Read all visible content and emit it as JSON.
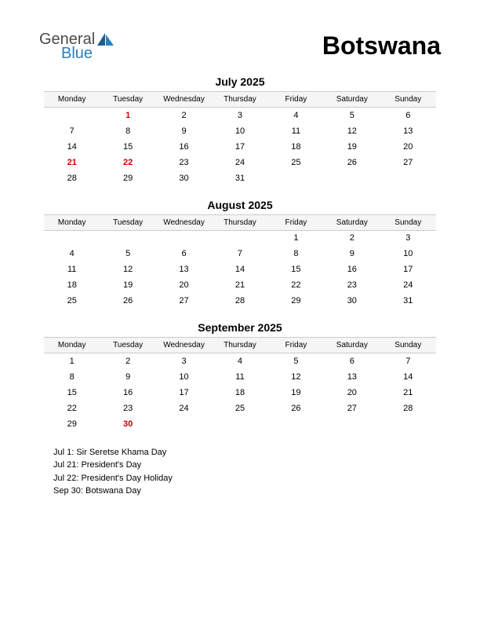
{
  "logo": {
    "text1": "General",
    "text2": "Blue",
    "color_general": "#4a4a4a",
    "color_blue": "#2b7fbf",
    "triangle_color": "#1e5f8f"
  },
  "country": "Botswana",
  "day_headers": [
    "Monday",
    "Tuesday",
    "Wednesday",
    "Thursday",
    "Friday",
    "Saturday",
    "Sunday"
  ],
  "months": [
    {
      "title": "July 2025",
      "weeks": [
        [
          "",
          "1",
          "2",
          "3",
          "4",
          "5",
          "6"
        ],
        [
          "7",
          "8",
          "9",
          "10",
          "11",
          "12",
          "13"
        ],
        [
          "14",
          "15",
          "16",
          "17",
          "18",
          "19",
          "20"
        ],
        [
          "21",
          "22",
          "23",
          "24",
          "25",
          "26",
          "27"
        ],
        [
          "28",
          "29",
          "30",
          "31",
          "",
          "",
          ""
        ]
      ],
      "holidays": [
        "1",
        "21",
        "22"
      ]
    },
    {
      "title": "August 2025",
      "weeks": [
        [
          "",
          "",
          "",
          "",
          "1",
          "2",
          "3"
        ],
        [
          "4",
          "5",
          "6",
          "7",
          "8",
          "9",
          "10"
        ],
        [
          "11",
          "12",
          "13",
          "14",
          "15",
          "16",
          "17"
        ],
        [
          "18",
          "19",
          "20",
          "21",
          "22",
          "23",
          "24"
        ],
        [
          "25",
          "26",
          "27",
          "28",
          "29",
          "30",
          "31"
        ]
      ],
      "holidays": []
    },
    {
      "title": "September 2025",
      "weeks": [
        [
          "1",
          "2",
          "3",
          "4",
          "5",
          "6",
          "7"
        ],
        [
          "8",
          "9",
          "10",
          "11",
          "12",
          "13",
          "14"
        ],
        [
          "15",
          "16",
          "17",
          "18",
          "19",
          "20",
          "21"
        ],
        [
          "22",
          "23",
          "24",
          "25",
          "26",
          "27",
          "28"
        ],
        [
          "29",
          "30",
          "",
          "",
          "",
          "",
          ""
        ]
      ],
      "holidays": [
        "30"
      ]
    }
  ],
  "holiday_list": [
    "Jul 1: Sir Seretse Khama Day",
    "Jul 21: President's Day",
    "Jul 22: President's Day Holiday",
    "Sep 30: Botswana Day"
  ],
  "colors": {
    "holiday_text": "#cc0000",
    "header_bg": "#f5f5f5",
    "header_border": "#cccccc",
    "background": "#ffffff"
  }
}
